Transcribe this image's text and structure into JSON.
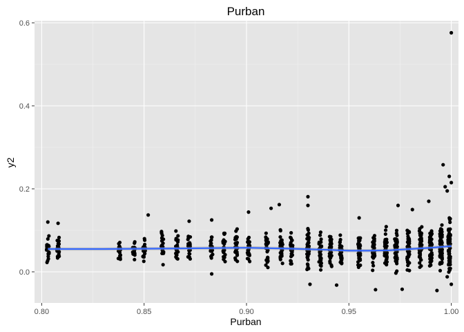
{
  "chart_data": {
    "type": "scatter",
    "title": "Purban",
    "xlabel": "Purban",
    "ylabel": "y2",
    "xlim": [
      0.7965,
      1.0035
    ],
    "ylim": [
      -0.075,
      0.605
    ],
    "x_ticks": [
      0.8,
      0.85,
      0.9,
      0.95,
      1.0
    ],
    "x_tick_labels": [
      "0.80",
      "0.85",
      "0.90",
      "0.95",
      "1.00"
    ],
    "y_ticks": [
      0.0,
      0.2,
      0.4,
      0.6
    ],
    "y_tick_labels": [
      "0.0",
      "0.2",
      "0.4",
      "0.6"
    ],
    "grid": true,
    "legend": "none",
    "colors": {
      "panel": "#e5e5e5",
      "grid_major": "#ffffff",
      "grid_minor": "#f2f2f2",
      "points": "#000000",
      "smooth": "#3366ff",
      "ribbon": "#999999"
    },
    "clusters": [
      {
        "x": 0.803,
        "center": 0.055,
        "spread": 0.028,
        "n": 22
      },
      {
        "x": 0.808,
        "center": 0.055,
        "spread": 0.03,
        "n": 20
      },
      {
        "x": 0.838,
        "center": 0.055,
        "spread": 0.024,
        "n": 18
      },
      {
        "x": 0.845,
        "center": 0.052,
        "spread": 0.026,
        "n": 18
      },
      {
        "x": 0.85,
        "center": 0.056,
        "spread": 0.025,
        "n": 18
      },
      {
        "x": 0.859,
        "center": 0.055,
        "spread": 0.032,
        "n": 22
      },
      {
        "x": 0.866,
        "center": 0.057,
        "spread": 0.03,
        "n": 24
      },
      {
        "x": 0.872,
        "center": 0.058,
        "spread": 0.032,
        "n": 24
      },
      {
        "x": 0.883,
        "center": 0.056,
        "spread": 0.03,
        "n": 24
      },
      {
        "x": 0.889,
        "center": 0.057,
        "spread": 0.028,
        "n": 22
      },
      {
        "x": 0.895,
        "center": 0.058,
        "spread": 0.03,
        "n": 26
      },
      {
        "x": 0.901,
        "center": 0.056,
        "spread": 0.034,
        "n": 26
      },
      {
        "x": 0.91,
        "center": 0.056,
        "spread": 0.035,
        "n": 30
      },
      {
        "x": 0.917,
        "center": 0.058,
        "spread": 0.036,
        "n": 32
      },
      {
        "x": 0.922,
        "center": 0.055,
        "spread": 0.035,
        "n": 28
      },
      {
        "x": 0.93,
        "center": 0.054,
        "spread": 0.04,
        "n": 40
      },
      {
        "x": 0.936,
        "center": 0.053,
        "spread": 0.036,
        "n": 34
      },
      {
        "x": 0.941,
        "center": 0.052,
        "spread": 0.034,
        "n": 36
      },
      {
        "x": 0.946,
        "center": 0.051,
        "spread": 0.032,
        "n": 34
      },
      {
        "x": 0.955,
        "center": 0.052,
        "spread": 0.036,
        "n": 38
      },
      {
        "x": 0.962,
        "center": 0.051,
        "spread": 0.036,
        "n": 40
      },
      {
        "x": 0.968,
        "center": 0.054,
        "spread": 0.038,
        "n": 44
      },
      {
        "x": 0.973,
        "center": 0.056,
        "spread": 0.04,
        "n": 46
      },
      {
        "x": 0.979,
        "center": 0.057,
        "spread": 0.042,
        "n": 50
      },
      {
        "x": 0.985,
        "center": 0.058,
        "spread": 0.042,
        "n": 56
      },
      {
        "x": 0.99,
        "center": 0.06,
        "spread": 0.044,
        "n": 60
      },
      {
        "x": 0.995,
        "center": 0.061,
        "spread": 0.046,
        "n": 64
      },
      {
        "x": 0.999,
        "center": 0.062,
        "spread": 0.048,
        "n": 70
      }
    ],
    "extra_points": [
      {
        "x": 0.803,
        "y": 0.12
      },
      {
        "x": 0.808,
        "y": 0.117
      },
      {
        "x": 0.852,
        "y": 0.137
      },
      {
        "x": 0.872,
        "y": 0.122
      },
      {
        "x": 0.883,
        "y": 0.125
      },
      {
        "x": 0.883,
        "y": -0.005
      },
      {
        "x": 0.901,
        "y": 0.144
      },
      {
        "x": 0.912,
        "y": 0.153
      },
      {
        "x": 0.916,
        "y": 0.162
      },
      {
        "x": 0.93,
        "y": 0.181
      },
      {
        "x": 0.93,
        "y": 0.16
      },
      {
        "x": 0.931,
        "y": -0.03
      },
      {
        "x": 0.944,
        "y": -0.032
      },
      {
        "x": 0.955,
        "y": 0.13
      },
      {
        "x": 0.963,
        "y": -0.043
      },
      {
        "x": 0.974,
        "y": 0.16
      },
      {
        "x": 0.976,
        "y": -0.042
      },
      {
        "x": 0.981,
        "y": 0.15
      },
      {
        "x": 0.989,
        "y": 0.17
      },
      {
        "x": 0.993,
        "y": -0.045
      },
      {
        "x": 0.996,
        "y": 0.258
      },
      {
        "x": 0.997,
        "y": 0.205
      },
      {
        "x": 0.998,
        "y": 0.195
      },
      {
        "x": 0.999,
        "y": 0.23
      },
      {
        "x": 1.0,
        "y": 0.576
      },
      {
        "x": 1.0,
        "y": 0.215
      },
      {
        "x": 1.0,
        "y": -0.03
      },
      {
        "x": 0.998,
        "y": -0.012
      }
    ],
    "smooth_line": {
      "x": [
        0.803,
        0.83,
        0.86,
        0.88,
        0.9,
        0.92,
        0.94,
        0.95,
        0.96,
        0.97,
        0.98,
        0.99,
        1.0
      ],
      "y": [
        0.055,
        0.055,
        0.056,
        0.057,
        0.058,
        0.056,
        0.053,
        0.051,
        0.051,
        0.052,
        0.055,
        0.058,
        0.062
      ],
      "se": 0.004
    }
  }
}
